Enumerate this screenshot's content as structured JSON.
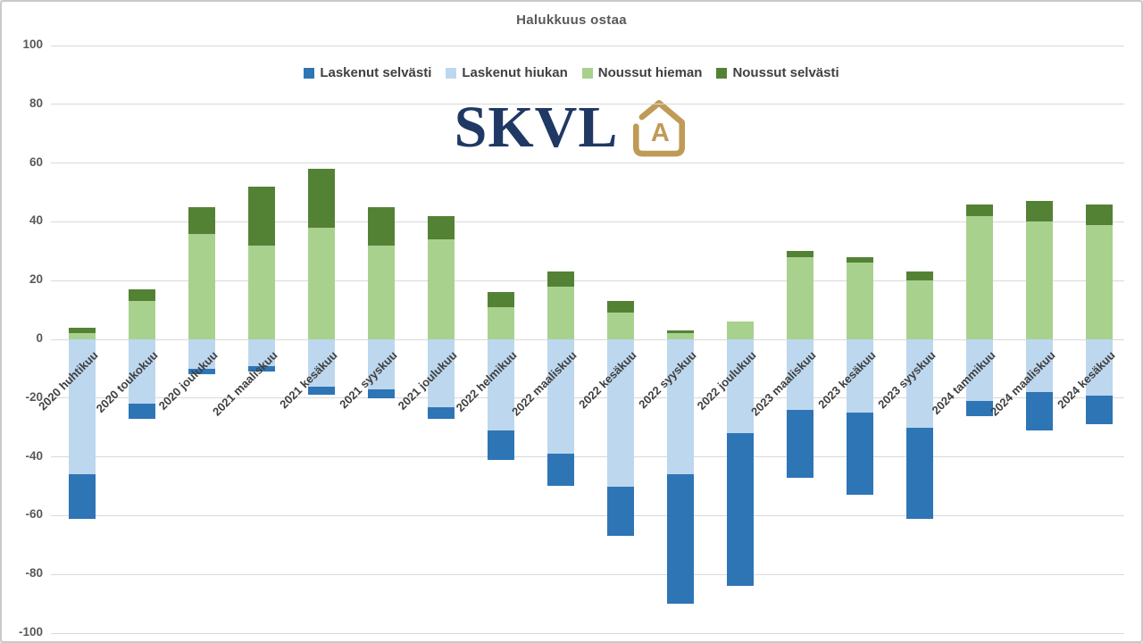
{
  "title": "Halukkuus ostaa",
  "logo": {
    "text": "SKVL",
    "badge_letter": "A",
    "navy_color": "#1F3864",
    "gold_color": "#BF9B57"
  },
  "chart_data": {
    "type": "bar",
    "stacked": true,
    "title": "Halukkuus ostaa",
    "legend_position": "top-center",
    "grid": true,
    "gridline_color": "#D9D9D9",
    "axis_text_color": "#595959",
    "category_text_color": "#3F3F3F",
    "ylim": [
      -100,
      100
    ],
    "ytick_step": 20,
    "yticks": [
      100,
      80,
      60,
      40,
      20,
      0,
      -20,
      -40,
      -60,
      -80,
      -100
    ],
    "categories": [
      "2020 huhtikuu",
      "2020 toukokuu",
      "2020 joulukuu",
      "2021 maaliskuu",
      "2021 kesäkuu",
      "2021 syyskuu",
      "2021 joulukuu",
      "2022 helmikuu",
      "2022 maaliskuu",
      "2022 kesäkuu",
      "2022 syyskuu",
      "2022 joulukuu",
      "2023 maaliskuu",
      "2023 kesäkuu",
      "2023 syyskuu",
      "2024 tammikuu",
      "2024 maaliskuu",
      "2024 kesäkuu"
    ],
    "series": [
      {
        "name": "Laskenut selvästi",
        "color": "#2E75B6",
        "values": [
          -15,
          -5,
          -2,
          -2,
          -3,
          -3,
          -4,
          -10,
          -11,
          -17,
          -44,
          -52,
          -23,
          -28,
          -31,
          -5,
          -13,
          -10
        ]
      },
      {
        "name": "Laskenut hiukan",
        "color": "#BDD7EE",
        "values": [
          -46,
          -22,
          -10,
          -9,
          -16,
          -17,
          -23,
          -31,
          -39,
          -50,
          -46,
          -32,
          -24,
          -25,
          -30,
          -21,
          -18,
          -19
        ]
      },
      {
        "name": "Noussut hieman",
        "color": "#A9D18E",
        "values": [
          2,
          13,
          36,
          32,
          38,
          32,
          34,
          11,
          18,
          9,
          2,
          6,
          28,
          26,
          20,
          42,
          40,
          39
        ]
      },
      {
        "name": "Noussut selvästi",
        "color": "#548235",
        "values": [
          2,
          4,
          9,
          20,
          20,
          13,
          8,
          5,
          5,
          4,
          1,
          0,
          2,
          2,
          3,
          4,
          7,
          7
        ]
      }
    ],
    "stack_order": [
      1,
      0,
      2,
      3
    ]
  }
}
